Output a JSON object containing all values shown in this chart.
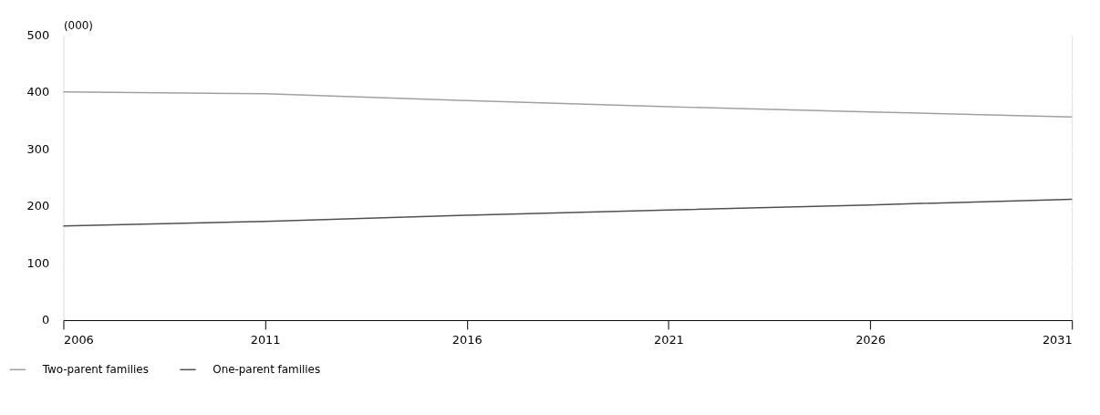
{
  "chart_data": {
    "type": "line",
    "ylabel": "(000)",
    "x": [
      2006,
      2011,
      2016,
      2021,
      2026,
      2031
    ],
    "series": [
      {
        "name": "Two-parent families",
        "color": "#a0a0a0",
        "values": [
          400,
          397,
          385,
          374,
          365,
          356
        ]
      },
      {
        "name": "One-parent families",
        "color": "#505050",
        "values": [
          165,
          173,
          184,
          193,
          202,
          212
        ]
      }
    ],
    "xlim": [
      2006,
      2031
    ],
    "xticks": [
      2006,
      2011,
      2016,
      2021,
      2026,
      2031
    ],
    "ylim": [
      0,
      500
    ],
    "yticks": [
      0,
      100,
      200,
      300,
      400,
      500
    ],
    "grid": "y",
    "legend": "bottom left",
    "marker": "none",
    "line_style": "solid"
  }
}
